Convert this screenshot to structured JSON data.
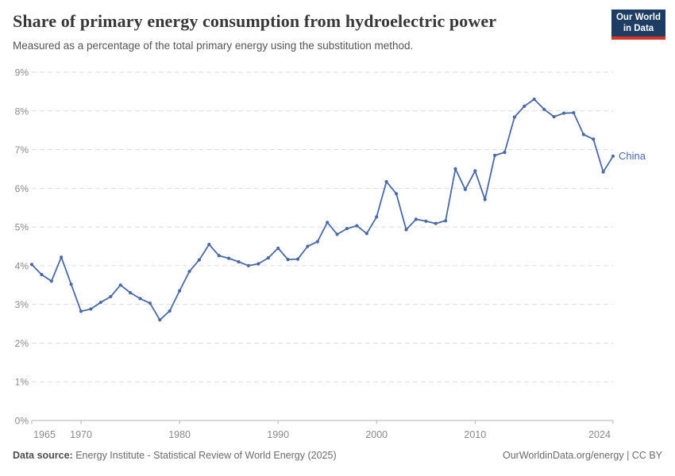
{
  "header": {
    "title": "Share of primary energy consumption from hydroelectric power",
    "subtitle": "Measured as a percentage of the total primary energy using the substitution method.",
    "logo": {
      "line1": "Our World",
      "line2": "in Data",
      "bg_color": "#1d3d63",
      "accent_color": "#d8352a"
    }
  },
  "footer": {
    "datasource_label": "Data source:",
    "datasource_text": "Energy Institute - Statistical Review of World Energy (2025)",
    "credit": "OurWorldinData.org/energy | CC BY"
  },
  "chart_data": {
    "type": "line",
    "title": "Share of primary energy consumption from hydroelectric power",
    "xlabel": "",
    "ylabel": "",
    "xlim": [
      1965,
      2024
    ],
    "ylim": [
      0,
      9
    ],
    "grid": "horizontal-dashed",
    "legend_position": "end-of-line-label",
    "xticks": [
      1965,
      1970,
      1980,
      1990,
      2000,
      2010,
      2024
    ],
    "ytick_labels": [
      "0%",
      "1%",
      "2%",
      "3%",
      "4%",
      "5%",
      "6%",
      "7%",
      "8%",
      "9%"
    ],
    "axis_color": "#b3b3b3",
    "gridline_color": "#dcdcdc",
    "tick_label_color": "#8a8a8a",
    "series": [
      {
        "name": "China",
        "color": "#4a69a5",
        "x": [
          1965,
          1966,
          1967,
          1968,
          1969,
          1970,
          1971,
          1972,
          1973,
          1974,
          1975,
          1976,
          1977,
          1978,
          1979,
          1980,
          1981,
          1982,
          1983,
          1984,
          1985,
          1986,
          1987,
          1988,
          1989,
          1990,
          1991,
          1992,
          1993,
          1994,
          1995,
          1996,
          1997,
          1998,
          1999,
          2000,
          2001,
          2002,
          2003,
          2004,
          2005,
          2006,
          2007,
          2008,
          2009,
          2010,
          2011,
          2012,
          2013,
          2014,
          2015,
          2016,
          2017,
          2018,
          2019,
          2020,
          2021,
          2022,
          2023,
          2024
        ],
        "values": [
          4.03,
          3.77,
          3.6,
          4.22,
          3.52,
          2.82,
          2.88,
          3.05,
          3.2,
          3.5,
          3.3,
          3.15,
          3.03,
          2.6,
          2.83,
          3.35,
          3.85,
          4.15,
          4.55,
          4.26,
          4.19,
          4.1,
          4.0,
          4.05,
          4.2,
          4.45,
          4.16,
          4.17,
          4.5,
          4.62,
          5.12,
          4.81,
          4.96,
          5.03,
          4.83,
          5.26,
          6.17,
          5.86,
          4.93,
          5.2,
          5.15,
          5.09,
          5.16,
          6.5,
          5.97,
          6.45,
          5.71,
          6.85,
          6.93,
          7.84,
          8.12,
          8.3,
          8.04,
          7.85,
          7.94,
          7.95,
          7.39,
          7.27,
          6.42,
          6.83
        ]
      }
    ]
  }
}
